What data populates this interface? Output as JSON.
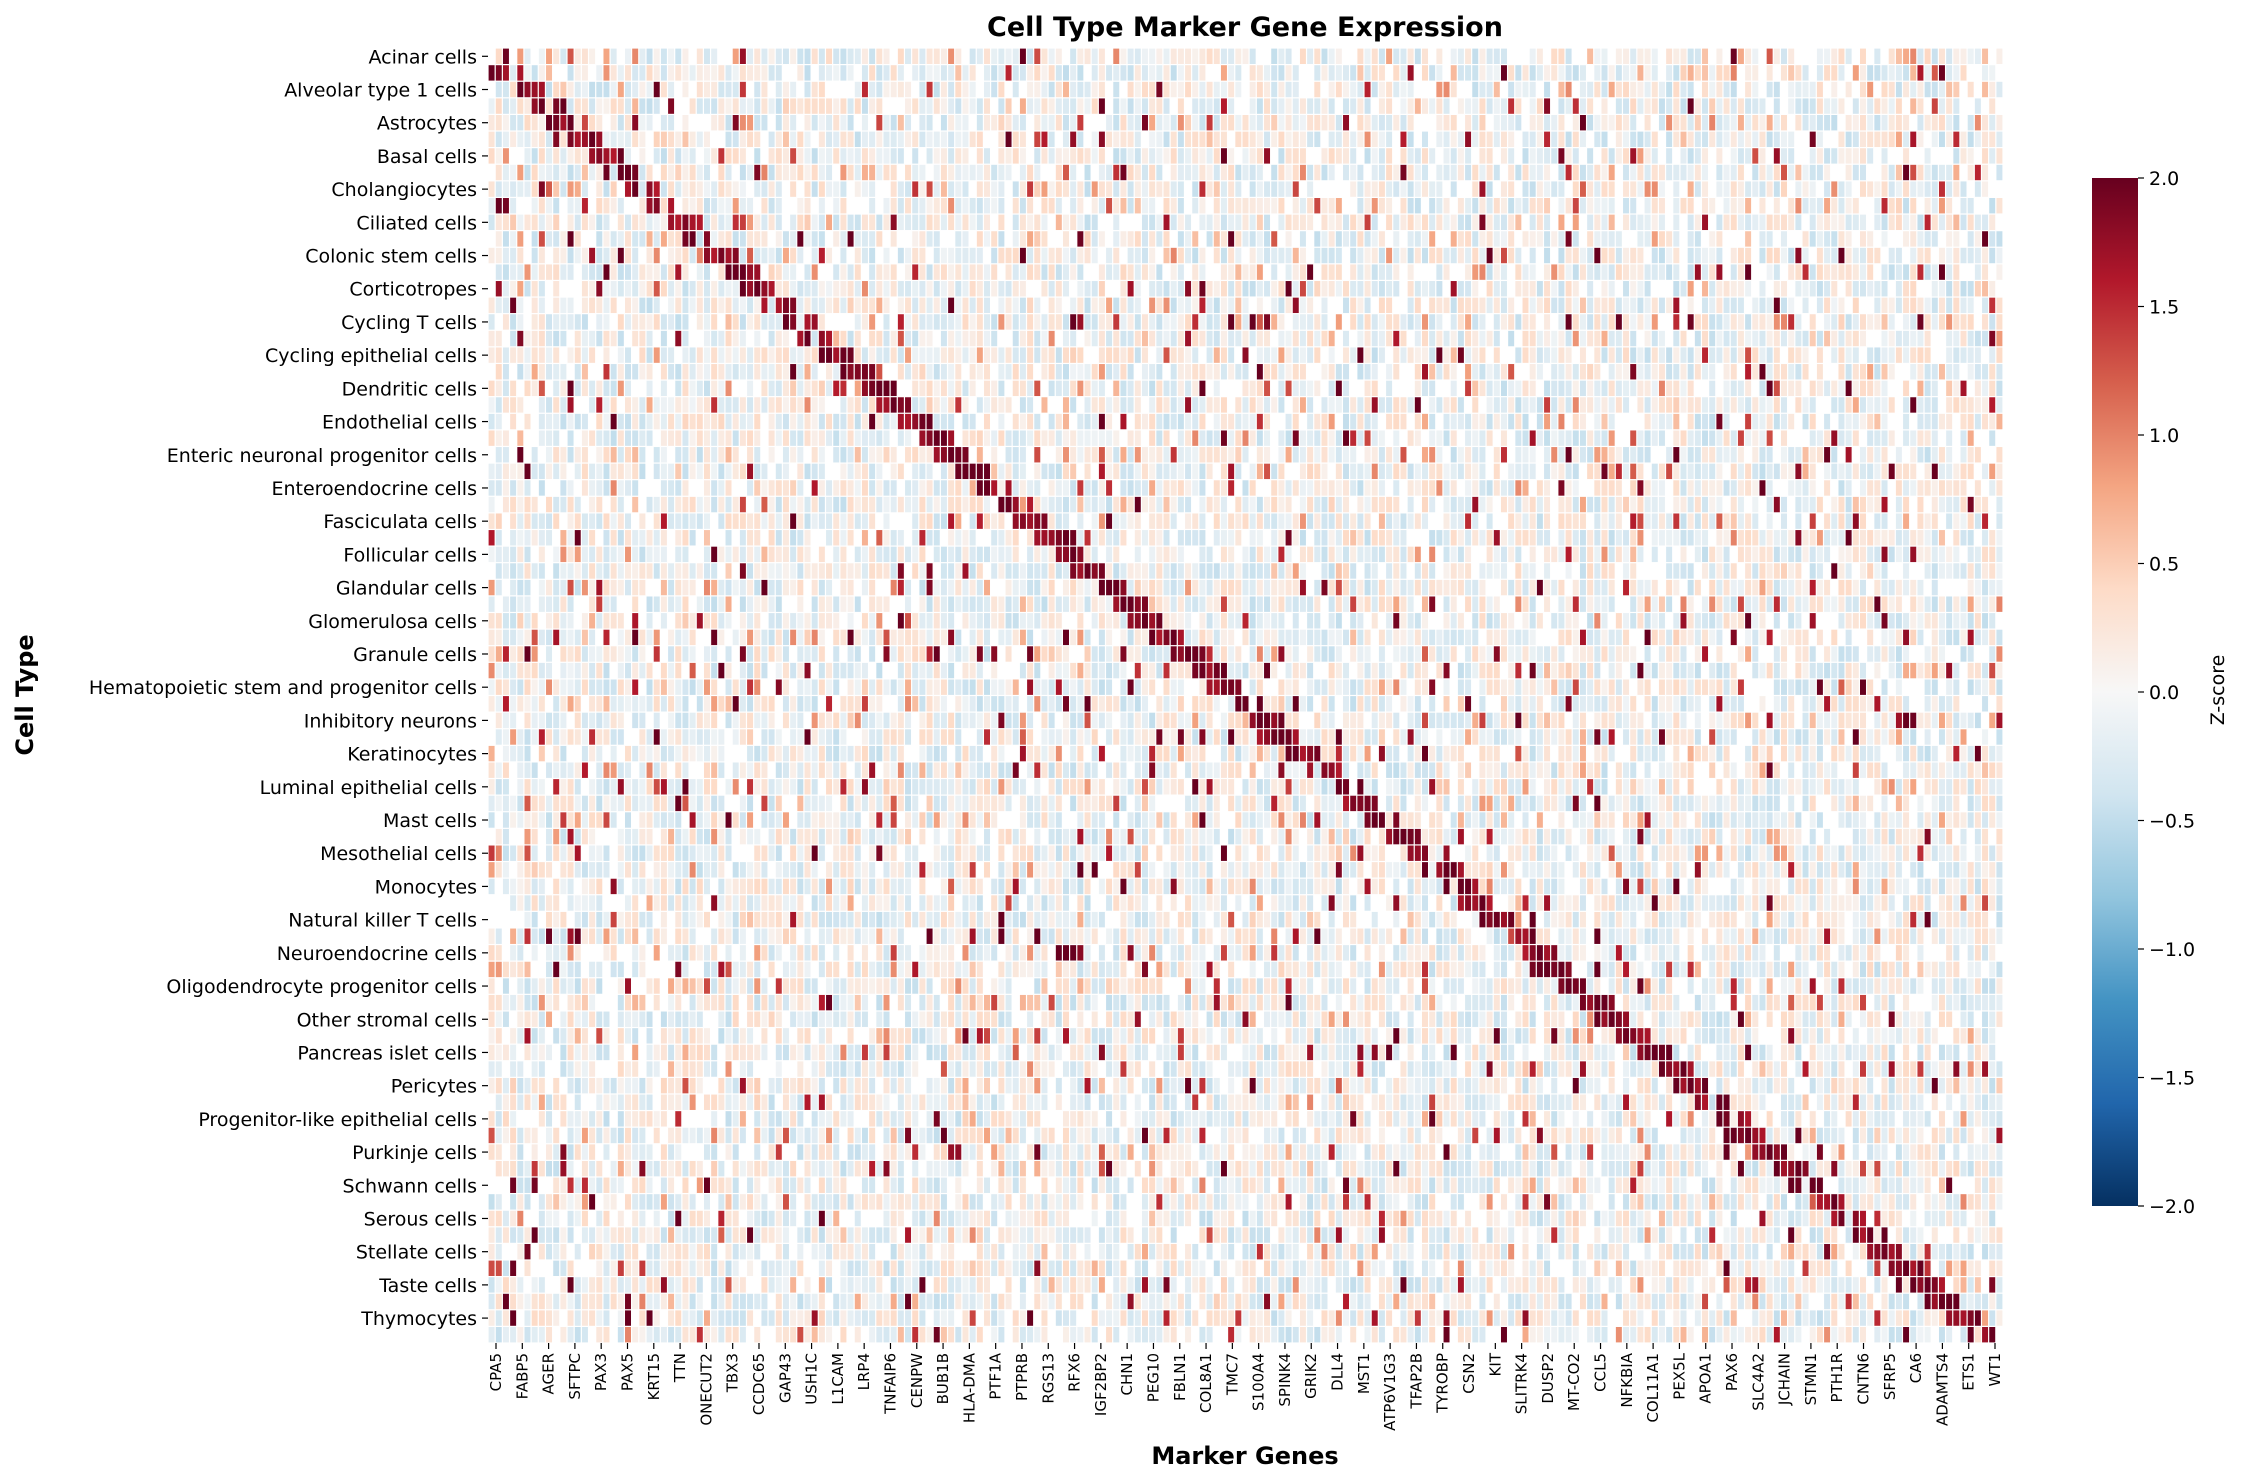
{
  "chart_data": {
    "type": "heatmap",
    "title": "Cell Type Marker Gene Expression",
    "xlabel": "Marker Genes",
    "ylabel": "Cell Type",
    "colorbar": {
      "label": "Z-score",
      "range": [
        -2.0,
        2.0
      ],
      "ticks": [
        "2.0",
        "1.5",
        "1.0",
        "0.5",
        "0.0",
        "−0.5",
        "−1.0",
        "−1.5",
        "−2.0"
      ],
      "colormap": [
        "#053061",
        "#2166ac",
        "#4393c3",
        "#92c5de",
        "#d1e5f0",
        "#f7f7f7",
        "#fddbc7",
        "#f4a582",
        "#d6604d",
        "#b2182b",
        "#67001f"
      ]
    },
    "row_labels": [
      "Acinar cells",
      "Alveolar type 1 cells",
      "Astrocytes",
      "Basal cells",
      "Cholangiocytes",
      "Ciliated cells",
      "Colonic stem cells",
      "Corticotropes",
      "Cycling T cells",
      "Cycling epithelial cells",
      "Dendritic cells",
      "Endothelial cells",
      "Enteric neuronal progenitor cells",
      "Enteroendocrine cells",
      "Fasciculata cells",
      "Follicular cells",
      "Glandular cells",
      "Glomerulosa cells",
      "Granule cells",
      "Hematopoietic stem and progenitor cells",
      "Inhibitory neurons",
      "Keratinocytes",
      "Luminal epithelial cells",
      "Mast cells",
      "Mesothelial cells",
      "Monocytes",
      "Natural killer T cells",
      "Neuroendocrine cells",
      "Oligodendrocyte progenitor cells",
      "Other stromal cells",
      "Pancreas islet cells",
      "Pericytes",
      "Progenitor-like epithelial cells",
      "Purkinje cells",
      "Schwann cells",
      "Serous cells",
      "Stellate cells",
      "Taste cells",
      "Thymocytes"
    ],
    "col_labels": [
      "CPA5",
      "FABP5",
      "AGER",
      "SFTPC",
      "PAX3",
      "PAX5",
      "KRT15",
      "TTN",
      "ONECUT2",
      "TBX3",
      "CCDC65",
      "GAP43",
      "USH1C",
      "L1CAM",
      "LRP4",
      "TNFAIP6",
      "CENPW",
      "BUB1B",
      "HLA-DMA",
      "PTF1A",
      "PTPRB",
      "RGS13",
      "RFX6",
      "IGF2BP2",
      "CHN1",
      "PEG10",
      "FBLN1",
      "COL8A1",
      "TMC7",
      "S100A4",
      "SPINK4",
      "GRIK2",
      "DLL4",
      "MST1",
      "ATP6V1G3",
      "TFAP2B",
      "TYROBP",
      "CSN2",
      "KIT",
      "SLITRK4",
      "DUSP2",
      "MT-CO2",
      "CCL5",
      "NFKBIA",
      "COL11A1",
      "PEX5L",
      "APOA1",
      "PAX6",
      "SLC4A2",
      "JCHAIN",
      "STMN1",
      "PTH1R",
      "CNTN6",
      "SFRP5",
      "CA6",
      "ADAMTS4",
      "ETS1",
      "WT1"
    ],
    "n_rows_drawn": 78,
    "n_cols_drawn": 211,
    "note_rows": "Each labelled cell type spans two drawn rows; each labelled gene spans several drawn columns."
  }
}
